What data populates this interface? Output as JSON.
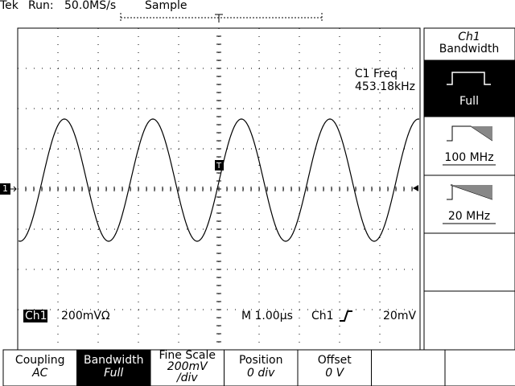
{
  "status_bar": {
    "brand": "Tek",
    "state": "Run:",
    "sample_rate": "50.0MS/s",
    "mode": "Sample"
  },
  "measurement": {
    "label": "C1 Freq",
    "value": "453.18kHz"
  },
  "readout": {
    "channel": "Ch1",
    "scale": "200mVΩ",
    "timebase": "M 1.00µs",
    "trigger_source": "Ch1",
    "trigger_level": "20mV"
  },
  "markers": {
    "channel": "1",
    "trigger": "T"
  },
  "side_menu": {
    "title": "Ch1",
    "subtitle": "Bandwidth",
    "options": [
      {
        "label": "Full",
        "selected": true
      },
      {
        "label": "100 MHz",
        "selected": false
      },
      {
        "label": "20 MHz",
        "selected": false
      }
    ]
  },
  "bottom_menu": [
    {
      "title": "Coupling",
      "value": "AC",
      "selected": false
    },
    {
      "title": "Bandwidth",
      "value": "Full",
      "selected": true
    },
    {
      "title": "Fine Scale",
      "value": "200mV",
      "unit": "/div",
      "selected": false
    },
    {
      "title": "Position",
      "value": "0 div",
      "selected": false
    },
    {
      "title": "Offset",
      "value": "0 V",
      "selected": false
    }
  ]
}
